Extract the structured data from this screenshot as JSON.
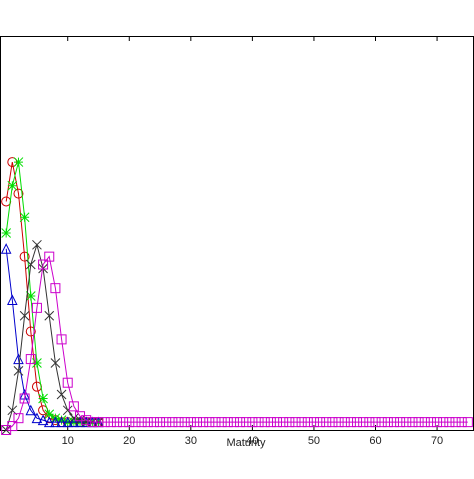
{
  "chart_data": {
    "type": "line",
    "xlabel": "Maturity",
    "ylabel": "",
    "title": "",
    "xlim": [
      -1,
      76
    ],
    "ylim": [
      0,
      1
    ],
    "xticks": [
      10,
      20,
      30,
      40,
      50,
      60,
      70
    ],
    "grid": false,
    "series": [
      {
        "color": "#cc0000",
        "marker": "circle",
        "x": [
          0,
          1,
          2,
          3,
          4,
          5,
          6,
          7,
          8,
          9,
          10,
          11,
          12,
          13,
          14,
          15
        ],
        "y": [
          0.58,
          0.68,
          0.6,
          0.44,
          0.25,
          0.11,
          0.05,
          0.03,
          0.025,
          0.02,
          0.02,
          0.02,
          0.02,
          0.02,
          0.02,
          0.02
        ]
      },
      {
        "color": "#00dd00",
        "marker": "asterisk",
        "x": [
          0,
          1,
          2,
          3,
          4,
          5,
          6,
          7,
          8,
          9,
          10,
          11,
          12,
          13,
          14,
          15
        ],
        "y": [
          0.5,
          0.62,
          0.68,
          0.54,
          0.34,
          0.17,
          0.08,
          0.04,
          0.03,
          0.025,
          0.02,
          0.02,
          0.02,
          0.02,
          0.02,
          0.02
        ]
      },
      {
        "color": "#0000cc",
        "marker": "triangle",
        "x": [
          0,
          1,
          2,
          3,
          4,
          5,
          6,
          7,
          8,
          9,
          10,
          11,
          12,
          13,
          14,
          15
        ],
        "y": [
          0.46,
          0.33,
          0.18,
          0.09,
          0.05,
          0.03,
          0.025,
          0.02,
          0.02,
          0.02,
          0.02,
          0.02,
          0.02,
          0.02,
          0.02,
          0.02
        ]
      },
      {
        "color": "#333333",
        "marker": "x",
        "x": [
          0,
          1,
          2,
          3,
          4,
          5,
          6,
          7,
          8,
          9,
          10,
          11,
          12,
          13,
          14,
          15
        ],
        "y": [
          0.0,
          0.05,
          0.15,
          0.29,
          0.42,
          0.47,
          0.41,
          0.29,
          0.17,
          0.09,
          0.05,
          0.03,
          0.025,
          0.02,
          0.02,
          0.02
        ]
      },
      {
        "color": "#cc00cc",
        "marker": "square",
        "x": [
          0,
          1,
          2,
          3,
          4,
          5,
          6,
          7,
          8,
          9,
          10,
          11,
          12,
          13,
          14,
          15,
          16,
          17,
          18,
          19,
          20,
          21,
          22,
          23,
          24,
          25,
          26,
          27,
          28,
          29,
          30,
          31,
          32,
          33,
          34,
          35,
          36,
          37,
          38,
          39,
          40,
          41,
          42,
          43,
          44,
          45,
          46,
          47,
          48,
          49,
          50,
          51,
          52,
          53,
          54,
          55,
          56,
          57,
          58,
          59,
          60,
          61,
          62,
          63,
          64,
          65,
          66,
          67,
          68,
          69,
          70,
          71,
          72,
          73,
          74,
          75
        ],
        "y": [
          0.0,
          0.01,
          0.03,
          0.08,
          0.18,
          0.31,
          0.42,
          0.44,
          0.36,
          0.23,
          0.12,
          0.06,
          0.035,
          0.025,
          0.02,
          0.02,
          0.02,
          0.02,
          0.02,
          0.02,
          0.02,
          0.02,
          0.02,
          0.02,
          0.02,
          0.02,
          0.02,
          0.02,
          0.02,
          0.02,
          0.02,
          0.02,
          0.02,
          0.02,
          0.02,
          0.02,
          0.02,
          0.02,
          0.02,
          0.02,
          0.02,
          0.02,
          0.02,
          0.02,
          0.02,
          0.02,
          0.02,
          0.02,
          0.02,
          0.02,
          0.02,
          0.02,
          0.02,
          0.02,
          0.02,
          0.02,
          0.02,
          0.02,
          0.02,
          0.02,
          0.02,
          0.02,
          0.02,
          0.02,
          0.02,
          0.02,
          0.02,
          0.02,
          0.02,
          0.02,
          0.02,
          0.02,
          0.02,
          0.02,
          0.02,
          0.02
        ]
      }
    ]
  }
}
